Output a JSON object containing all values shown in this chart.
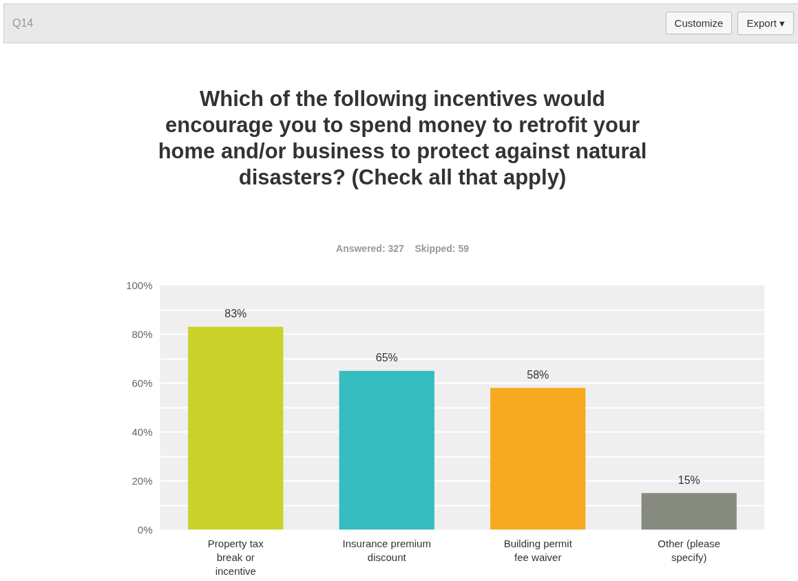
{
  "chart_data": {
    "type": "bar",
    "title": "Which of the following incentives would encourage you to spend money to retrofit your home and/or business to protect against natural disasters? (Check all that apply)",
    "subtitle": "Answered: 327    Skipped: 59",
    "annotations": [
      "Q14",
      "Customize",
      "Export ▾"
    ],
    "categories": [
      "Property tax break or incentive",
      "Insurance premium discount",
      "Building permit fee waiver",
      "Other (please specify)"
    ],
    "values": [
      83,
      65,
      58,
      15
    ],
    "colors": [
      "#c9d22b",
      "#35bdc0",
      "#f7aa1f",
      "#878a7f"
    ],
    "ylim": [
      0,
      100
    ],
    "yticks": [
      {
        "value": 0,
        "label": "0%"
      },
      {
        "value": 10,
        "label": null
      },
      {
        "value": 20,
        "label": "20%"
      },
      {
        "value": 30,
        "label": null
      },
      {
        "value": 40,
        "label": "40%"
      },
      {
        "value": 50,
        "label": null
      },
      {
        "value": 60,
        "label": "60%"
      },
      {
        "value": 70,
        "label": null
      },
      {
        "value": 80,
        "label": "80%"
      },
      {
        "value": 90,
        "label": null
      },
      {
        "value": 100,
        "label": "100%"
      }
    ],
    "value_labels": [
      "83%",
      "65%",
      "58%",
      "15%"
    ],
    "grid": "y"
  }
}
